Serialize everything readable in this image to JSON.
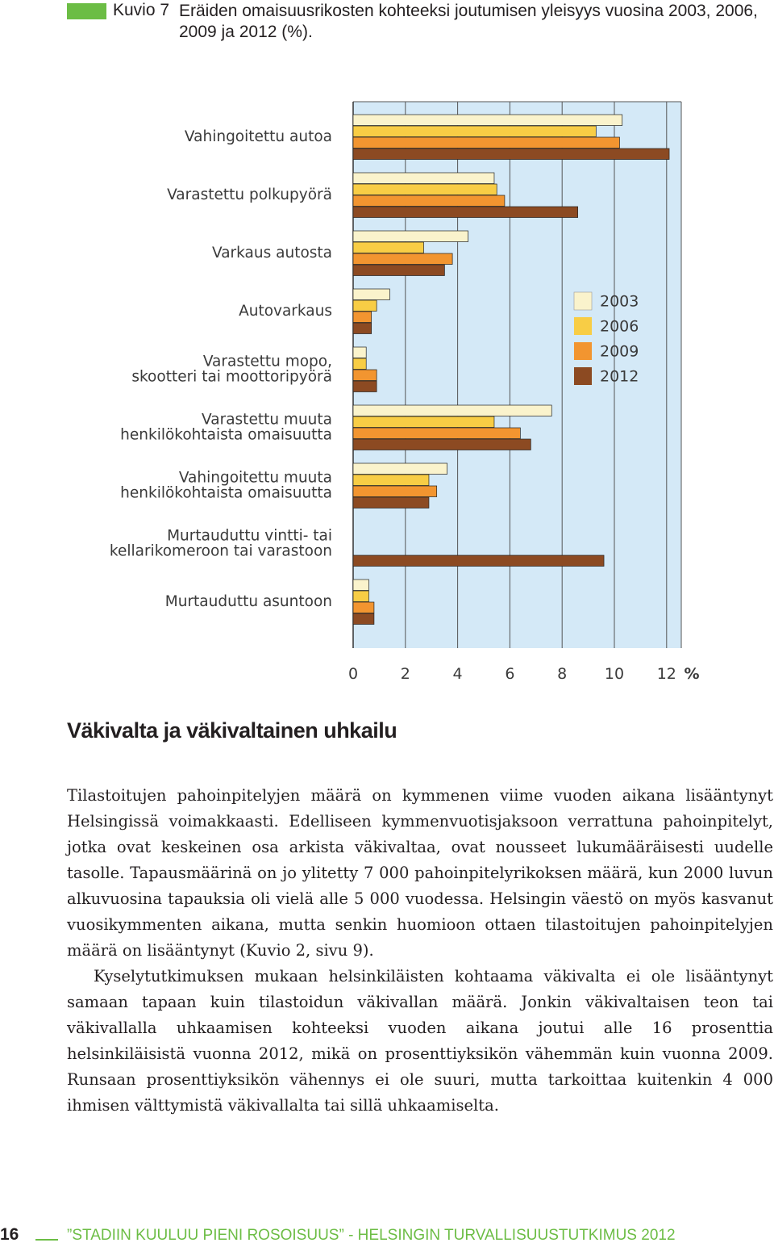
{
  "caption": {
    "label": "Kuvio 7",
    "title": "Eräiden omaisuusrikosten kohteeksi joutumisen yleisyys vuosina 2003, 2006, 2009 ja 2012 (%)."
  },
  "chart_data": {
    "type": "bar",
    "orientation": "horizontal",
    "categories": [
      [
        "Vahingoitettu autoa"
      ],
      [
        "Varastettu polkupyörä"
      ],
      [
        "Varkaus autosta"
      ],
      [
        "Autovarkaus"
      ],
      [
        "Varastettu mopo,",
        "skootteri tai moottoripyörä"
      ],
      [
        "Varastettu muuta",
        "henkilökohtaista omaisuutta"
      ],
      [
        "Vahingoitettu muuta",
        "henkilökohtaista omaisuutta"
      ],
      [
        "Murtauduttu vintti- tai",
        "kellarikomeroon tai varastoon"
      ],
      [
        "Murtauduttu asuntoon"
      ]
    ],
    "series": [
      {
        "name": "2003",
        "color": "#faf3cc",
        "values": [
          10.3,
          5.4,
          4.4,
          1.4,
          0.5,
          7.6,
          3.6,
          null,
          0.6
        ]
      },
      {
        "name": "2006",
        "color": "#f8cd45",
        "values": [
          9.3,
          5.5,
          2.7,
          0.9,
          0.5,
          5.4,
          2.9,
          null,
          0.6
        ]
      },
      {
        "name": "2009",
        "color": "#f29530",
        "values": [
          10.2,
          5.8,
          3.8,
          0.7,
          0.9,
          6.4,
          3.2,
          null,
          0.8
        ]
      },
      {
        "name": "2012",
        "color": "#8c4a22",
        "values": [
          12.1,
          8.6,
          3.5,
          0.7,
          0.9,
          6.8,
          2.9,
          9.6,
          0.8
        ]
      }
    ],
    "xlim": [
      0,
      12.6
    ],
    "xticks": [
      0,
      2,
      4,
      6,
      8,
      10,
      12
    ],
    "x_unit": "%",
    "legend_position": "right",
    "grid": true,
    "plot_background": "#d4e9f7"
  },
  "heading": "Väkivalta ja väkivaltainen uhkailu",
  "paragraphs": [
    "Tilastoitujen pahoinpitelyjen määrä on kymmenen viime vuoden aikana lisääntynyt Helsingissä voimakkaasti. Edelliseen kymmenvuotisjaksoon verrattuna pahoinpitelyt, jotka ovat keskeinen osa arkista väkivaltaa, ovat nousseet lukumääräisesti uudelle tasolle. Tapausmäärinä on jo ylitetty 7 000 pahoinpitelyrikoksen määrä, kun 2000 luvun alkuvuosina tapauksia oli vielä alle 5 000 vuodessa. Helsingin väestö on myös kasvanut vuosikymmenten aikana, mutta senkin huomioon ottaen tilastoitujen pahoinpitelyjen määrä on lisääntynyt (Kuvio 2, sivu 9).",
    "Kyselytutkimuksen mukaan helsinkiläisten kohtaama väkivalta ei ole lisääntynyt samaan tapaan kuin tilastoidun väkivallan määrä. Jonkin väkivaltaisen teon tai väkivallalla uhkaamisen kohteeksi vuoden aikana joutui alle 16 prosenttia helsinkiläisistä vuonna 2012, mikä on prosenttiyksikön vähemmän kuin vuonna 2009. Runsaan prosenttiyksikön vähennys ei ole suuri, mutta tarkoittaa kuitenkin 4 000 ihmisen välttymistä väkivallalta tai sillä uhkaamiselta."
  ],
  "footer": {
    "page_number": "16",
    "running_title": "”STADIIN KUULUU PIENI ROSOISUUS” - HELSINGIN TURVALLISUUSTUTKIMUS 2012"
  }
}
